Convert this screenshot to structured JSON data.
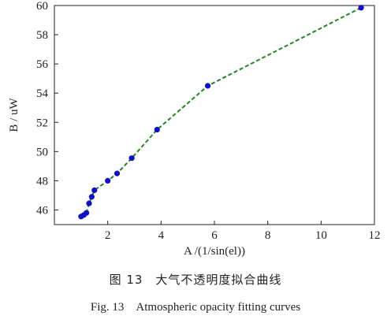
{
  "chart_data": {
    "type": "line",
    "xlabel": "A /(1/sin(el))",
    "ylabel": "B / uW",
    "xlim": [
      0,
      12
    ],
    "ylim": [
      45,
      60
    ],
    "xticks": [
      2,
      4,
      6,
      8,
      10,
      12
    ],
    "yticks": [
      46,
      48,
      50,
      52,
      54,
      56,
      58,
      60
    ],
    "grid": false,
    "line_style": "dashed",
    "line_color": "#1a8a1a",
    "marker_color": "#1010c8",
    "series": [
      {
        "x": [
          1.0,
          1.1,
          1.2,
          1.3,
          1.4,
          1.5,
          2.0,
          2.35,
          2.9,
          3.85,
          5.75,
          11.5
        ],
        "y": [
          45.55,
          45.65,
          45.8,
          46.45,
          46.9,
          47.35,
          48.0,
          48.5,
          49.55,
          51.5,
          54.5,
          59.85
        ]
      }
    ]
  },
  "caption": {
    "cn": "图 13　大气不透明度拟合曲线",
    "en": "Fig. 13　Atmospheric opacity fitting curves"
  }
}
